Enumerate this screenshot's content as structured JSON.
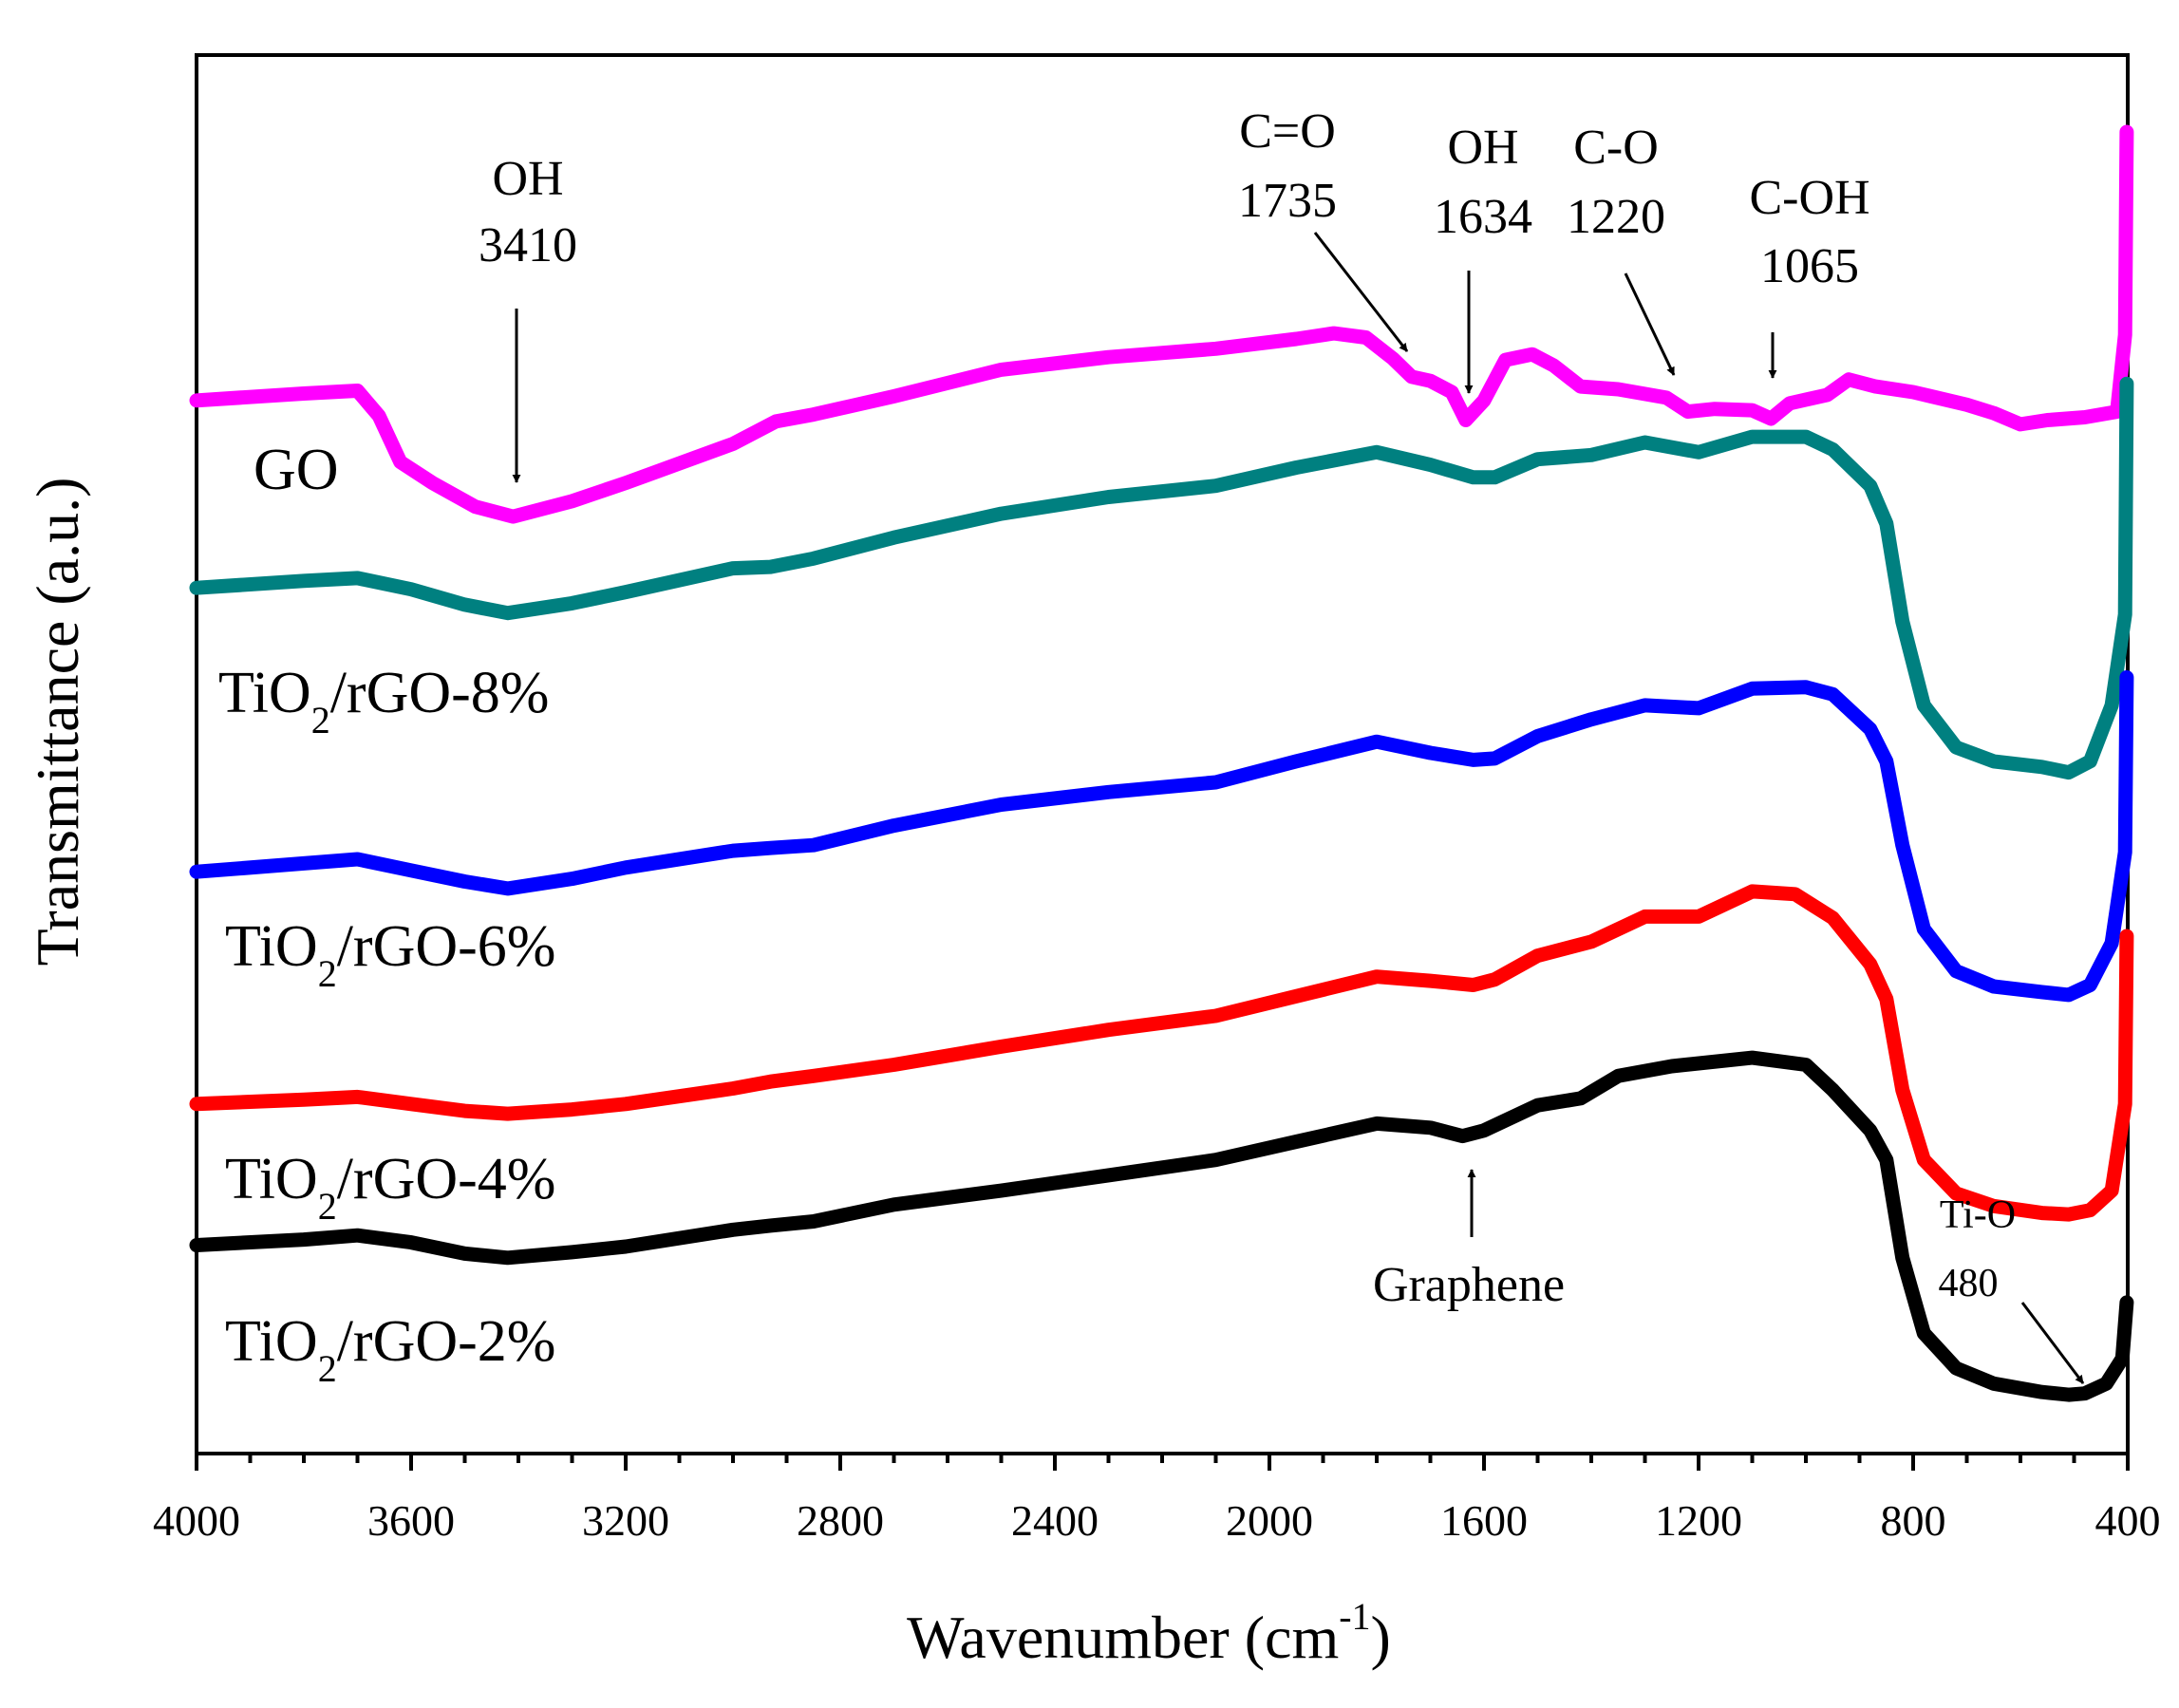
{
  "chart_data": {
    "type": "line",
    "title": "",
    "xlabel": "Wavenumber (cm-1)",
    "xlabel_main": "Wavenumber (cm",
    "xlabel_sup": "-1",
    "xlabel_close": ")",
    "ylabel": "Transmittance (a.u.)",
    "xlim": [
      4000,
      400
    ],
    "ylim": [
      0,
      100
    ],
    "x_reversed": true,
    "y_ticks_shown": false,
    "x_ticks": [
      4000,
      3600,
      3200,
      2800,
      2400,
      2000,
      1600,
      1200,
      800,
      400
    ],
    "x_tick_labels": [
      "4000",
      "3600",
      "3200",
      "2800",
      "2400",
      "2000",
      "1600",
      "1200",
      "800",
      "400"
    ],
    "series": [
      {
        "name": "GO",
        "label_main": "GO",
        "label_sub": "",
        "label_rest": "",
        "color": "#ff00ff",
        "points": [
          [
            4000,
            75.3
          ],
          [
            3800,
            75.8
          ],
          [
            3700,
            76.0
          ],
          [
            3660,
            74.2
          ],
          [
            3620,
            70.9
          ],
          [
            3560,
            69.4
          ],
          [
            3480,
            67.7
          ],
          [
            3410,
            67.0
          ],
          [
            3300,
            68.1
          ],
          [
            3200,
            69.4
          ],
          [
            3000,
            72.2
          ],
          [
            2920,
            73.8
          ],
          [
            2850,
            74.3
          ],
          [
            2700,
            75.6
          ],
          [
            2500,
            77.5
          ],
          [
            2300,
            78.4
          ],
          [
            2100,
            79.0
          ],
          [
            1950,
            79.7
          ],
          [
            1880,
            80.1
          ],
          [
            1820,
            79.8
          ],
          [
            1770,
            78.3
          ],
          [
            1735,
            77.0
          ],
          [
            1700,
            76.7
          ],
          [
            1660,
            75.9
          ],
          [
            1634,
            73.9
          ],
          [
            1600,
            75.3
          ],
          [
            1560,
            78.2
          ],
          [
            1510,
            78.6
          ],
          [
            1470,
            77.8
          ],
          [
            1420,
            76.3
          ],
          [
            1350,
            76.1
          ],
          [
            1260,
            75.5
          ],
          [
            1220,
            74.5
          ],
          [
            1170,
            74.7
          ],
          [
            1100,
            74.6
          ],
          [
            1065,
            74.0
          ],
          [
            1030,
            75.1
          ],
          [
            960,
            75.7
          ],
          [
            920,
            76.8
          ],
          [
            870,
            76.3
          ],
          [
            800,
            75.9
          ],
          [
            700,
            75.0
          ],
          [
            650,
            74.4
          ],
          [
            600,
            73.6
          ],
          [
            550,
            73.9
          ],
          [
            480,
            74.1
          ],
          [
            420,
            74.5
          ],
          [
            405,
            80.0
          ],
          [
            402,
            94.5
          ]
        ]
      },
      {
        "name": "TiO2/rGO-8%",
        "label_main": "TiO",
        "label_sub": "2",
        "label_rest": "/rGO-8%",
        "color": "#008080",
        "points": [
          [
            4000,
            61.9
          ],
          [
            3800,
            62.4
          ],
          [
            3700,
            62.6
          ],
          [
            3600,
            61.8
          ],
          [
            3500,
            60.7
          ],
          [
            3420,
            60.1
          ],
          [
            3300,
            60.8
          ],
          [
            3200,
            61.6
          ],
          [
            3000,
            63.3
          ],
          [
            2930,
            63.4
          ],
          [
            2850,
            64.0
          ],
          [
            2700,
            65.5
          ],
          [
            2500,
            67.2
          ],
          [
            2300,
            68.4
          ],
          [
            2100,
            69.2
          ],
          [
            1950,
            70.5
          ],
          [
            1800,
            71.6
          ],
          [
            1700,
            70.7
          ],
          [
            1620,
            69.8
          ],
          [
            1580,
            69.8
          ],
          [
            1500,
            71.1
          ],
          [
            1400,
            71.4
          ],
          [
            1300,
            72.3
          ],
          [
            1200,
            71.6
          ],
          [
            1100,
            72.7
          ],
          [
            1000,
            72.7
          ],
          [
            950,
            71.8
          ],
          [
            880,
            69.2
          ],
          [
            850,
            66.5
          ],
          [
            820,
            59.5
          ],
          [
            780,
            53.5
          ],
          [
            720,
            50.5
          ],
          [
            650,
            49.5
          ],
          [
            560,
            49.1
          ],
          [
            510,
            48.7
          ],
          [
            470,
            49.5
          ],
          [
            430,
            53.5
          ],
          [
            405,
            60.0
          ],
          [
            402,
            76.5
          ]
        ]
      },
      {
        "name": "TiO2/rGO-6%",
        "label_main": "TiO",
        "label_sub": "2",
        "label_rest": "/rGO-6%",
        "color": "#0000ff",
        "points": [
          [
            4000,
            41.6
          ],
          [
            3800,
            42.2
          ],
          [
            3700,
            42.5
          ],
          [
            3600,
            41.7
          ],
          [
            3500,
            40.9
          ],
          [
            3420,
            40.4
          ],
          [
            3300,
            41.1
          ],
          [
            3200,
            41.9
          ],
          [
            3000,
            43.1
          ],
          [
            2930,
            43.3
          ],
          [
            2850,
            43.5
          ],
          [
            2700,
            44.9
          ],
          [
            2500,
            46.4
          ],
          [
            2300,
            47.3
          ],
          [
            2100,
            48.0
          ],
          [
            1950,
            49.5
          ],
          [
            1800,
            50.9
          ],
          [
            1700,
            50.1
          ],
          [
            1620,
            49.6
          ],
          [
            1580,
            49.7
          ],
          [
            1500,
            51.3
          ],
          [
            1400,
            52.5
          ],
          [
            1300,
            53.5
          ],
          [
            1200,
            53.3
          ],
          [
            1100,
            54.7
          ],
          [
            1000,
            54.8
          ],
          [
            950,
            54.3
          ],
          [
            880,
            51.8
          ],
          [
            850,
            49.5
          ],
          [
            820,
            43.5
          ],
          [
            780,
            37.5
          ],
          [
            720,
            34.5
          ],
          [
            650,
            33.4
          ],
          [
            560,
            33.0
          ],
          [
            510,
            32.8
          ],
          [
            470,
            33.5
          ],
          [
            430,
            36.5
          ],
          [
            405,
            43.0
          ],
          [
            402,
            55.5
          ]
        ]
      },
      {
        "name": "TiO2/rGO-4%",
        "label_main": "TiO",
        "label_sub": "2",
        "label_rest": "/rGO-4%",
        "color": "#ff0000",
        "points": [
          [
            4000,
            25.0
          ],
          [
            3800,
            25.3
          ],
          [
            3700,
            25.5
          ],
          [
            3600,
            25.0
          ],
          [
            3500,
            24.5
          ],
          [
            3420,
            24.3
          ],
          [
            3300,
            24.6
          ],
          [
            3200,
            25.0
          ],
          [
            3000,
            26.1
          ],
          [
            2930,
            26.6
          ],
          [
            2850,
            27.0
          ],
          [
            2700,
            27.8
          ],
          [
            2500,
            29.1
          ],
          [
            2300,
            30.3
          ],
          [
            2100,
            31.3
          ],
          [
            1950,
            32.7
          ],
          [
            1800,
            34.1
          ],
          [
            1700,
            33.8
          ],
          [
            1620,
            33.5
          ],
          [
            1580,
            33.9
          ],
          [
            1500,
            35.6
          ],
          [
            1400,
            36.6
          ],
          [
            1300,
            38.4
          ],
          [
            1200,
            38.4
          ],
          [
            1100,
            40.2
          ],
          [
            1020,
            40.0
          ],
          [
            950,
            38.3
          ],
          [
            880,
            35.0
          ],
          [
            850,
            32.5
          ],
          [
            820,
            26.0
          ],
          [
            780,
            21.0
          ],
          [
            720,
            18.6
          ],
          [
            650,
            17.7
          ],
          [
            560,
            17.2
          ],
          [
            510,
            17.1
          ],
          [
            470,
            17.4
          ],
          [
            430,
            18.8
          ],
          [
            405,
            25.0
          ],
          [
            402,
            37.0
          ]
        ]
      },
      {
        "name": "TiO2/rGO-2%",
        "label_main": "TiO",
        "label_sub": "2",
        "label_rest": "/rGO-2%",
        "color": "#000000",
        "points": [
          [
            4000,
            14.9
          ],
          [
            3800,
            15.3
          ],
          [
            3700,
            15.6
          ],
          [
            3600,
            15.1
          ],
          [
            3500,
            14.3
          ],
          [
            3420,
            14.0
          ],
          [
            3300,
            14.4
          ],
          [
            3200,
            14.8
          ],
          [
            3000,
            16.0
          ],
          [
            2930,
            16.3
          ],
          [
            2850,
            16.6
          ],
          [
            2700,
            17.8
          ],
          [
            2500,
            18.8
          ],
          [
            2300,
            19.9
          ],
          [
            2100,
            21.0
          ],
          [
            1950,
            22.3
          ],
          [
            1800,
            23.6
          ],
          [
            1700,
            23.3
          ],
          [
            1640,
            22.7
          ],
          [
            1600,
            23.1
          ],
          [
            1500,
            24.9
          ],
          [
            1420,
            25.4
          ],
          [
            1350,
            27.0
          ],
          [
            1250,
            27.7
          ],
          [
            1100,
            28.3
          ],
          [
            1000,
            27.8
          ],
          [
            950,
            26.0
          ],
          [
            880,
            23.1
          ],
          [
            850,
            21.0
          ],
          [
            820,
            14.0
          ],
          [
            780,
            8.6
          ],
          [
            720,
            6.1
          ],
          [
            650,
            5.0
          ],
          [
            560,
            4.4
          ],
          [
            510,
            4.2
          ],
          [
            480,
            4.3
          ],
          [
            440,
            5.0
          ],
          [
            410,
            6.8
          ],
          [
            402,
            10.8
          ]
        ]
      }
    ],
    "annotations": [
      {
        "id": "oh-3410",
        "label": "OH",
        "value": "3410"
      },
      {
        "id": "co-1735",
        "label": "C=O",
        "value": "1735"
      },
      {
        "id": "oh-1634",
        "label": "OH",
        "value": "1634"
      },
      {
        "id": "c-o-1220",
        "label": "C-O",
        "value": "1220"
      },
      {
        "id": "c-oh-1065",
        "label": "C-OH",
        "value": "1065"
      },
      {
        "id": "graphene",
        "label": "Graphene",
        "value": ""
      },
      {
        "id": "ti-o-480",
        "label": "Ti-O",
        "value": "480"
      }
    ]
  }
}
